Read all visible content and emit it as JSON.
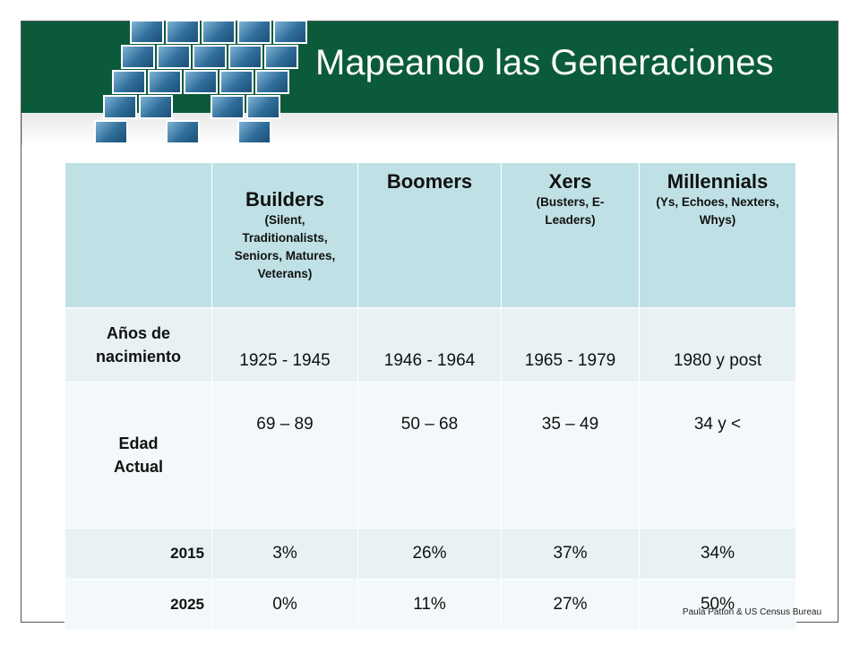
{
  "slide": {
    "title": "Mapeando las Generaciones",
    "credit": "Paula Patton & US Census Bureau",
    "colors": {
      "banner": "#0b5b3b",
      "header_cells": "#bfe1e5",
      "body_cells": "#e8f2f4"
    }
  },
  "table": {
    "columns": [
      {
        "name": "Builders",
        "sub": "(Silent, Traditionalists, Seniors, Matures, Veterans)"
      },
      {
        "name": "Boomers",
        "sub": ""
      },
      {
        "name": "Xers",
        "sub": "(Busters, E-Leaders)"
      },
      {
        "name": "Millennials",
        "sub": "(Ys, Echoes, Nexters, Whys)"
      }
    ],
    "rows": [
      {
        "label": "Años de nacimiento",
        "values": [
          "1925 - 1945",
          "1946 - 1964",
          "1965 - 1979",
          "1980 y post"
        ]
      },
      {
        "label": "Edad Actual",
        "values": [
          "69 – 89",
          "50 – 68",
          "35 – 49",
          "34 y <"
        ]
      },
      {
        "label": "2015",
        "values": [
          "3%",
          "26%",
          "37%",
          "34%"
        ]
      },
      {
        "label": "2025",
        "values": [
          "0%",
          "11%",
          "27%",
          "50%"
        ]
      }
    ]
  }
}
